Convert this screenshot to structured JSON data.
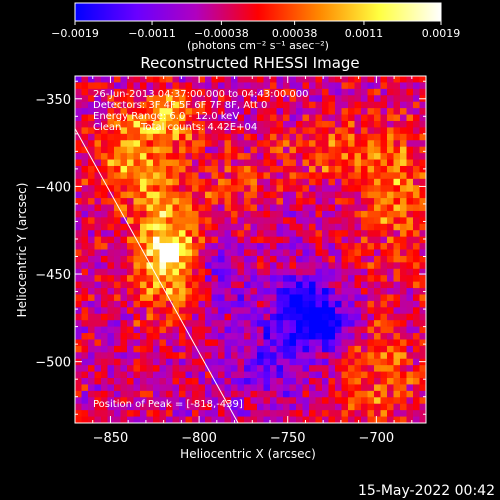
{
  "chart_data": {
    "type": "heatmap",
    "title": "Reconstructed RHESSI Image",
    "xlabel": "Heliocentric X (arcsec)",
    "ylabel": "Heliocentric Y (arcsec)",
    "xlim": [
      -870,
      -672
    ],
    "ylim": [
      -535,
      -337
    ],
    "x_ticks": [
      -850,
      -800,
      -750,
      -700
    ],
    "x_tick_labels": [
      "−850",
      "−800",
      "−750",
      "−700"
    ],
    "y_ticks": [
      -350,
      -400,
      -450,
      -500
    ],
    "y_tick_labels": [
      "−350",
      "−400",
      "−450",
      "−500"
    ],
    "colorbar": {
      "min": -0.0019,
      "max": 0.0019,
      "ticks": [
        -0.0019,
        -0.0011,
        -0.00038,
        0.00038,
        0.0011,
        0.0019
      ],
      "tick_labels": [
        "−0.0019",
        "−0.0011",
        "−0.00038",
        "0.00038",
        "0.0011",
        "0.0019"
      ],
      "units_label": "(photons cm⁻² s⁻¹ asec⁻²)",
      "colors": [
        "#0000ff",
        "#6a00ff",
        "#b000c0",
        "#ff0000",
        "#ff8a00",
        "#ffff40",
        "#ffffff"
      ]
    },
    "annotations": [
      "26-Jun-2013 04:37:00.000 to 04:43:00.000",
      "Detectors: 3F 4F 5F 6F 7F 8F, Att 0",
      "Energy Range: 6.0 - 12.0 keV",
      "Clean",
      "Total counts: 4.42E+04"
    ],
    "peak_label": "Position of Peak = [-818,-439]",
    "peak": {
      "x": -818,
      "y": -439,
      "value": 0.0019
    },
    "limb_line": [
      [
        -870,
        -367
      ],
      [
        -778,
        -535
      ]
    ],
    "hot_sources": [
      {
        "x": -818,
        "y": -439,
        "sigma_x": 13,
        "sigma_y": 22,
        "value": 0.0019
      },
      {
        "x": -836,
        "y": -385,
        "sigma_x": 16,
        "sigma_y": 18,
        "value": 0.0012
      },
      {
        "x": -815,
        "y": -360,
        "sigma_x": 14,
        "sigma_y": 10,
        "value": 0.001
      },
      {
        "x": -690,
        "y": -400,
        "sigma_x": 14,
        "sigma_y": 30,
        "value": 0.0009
      },
      {
        "x": -700,
        "y": -505,
        "sigma_x": 18,
        "sigma_y": 22,
        "value": 0.0008
      },
      {
        "x": -730,
        "y": -380,
        "sigma_x": 18,
        "sigma_y": 12,
        "value": 0.0007
      },
      {
        "x": -780,
        "y": -400,
        "sigma_x": 14,
        "sigma_y": 12,
        "value": 0.0006
      }
    ],
    "cold_sources": [
      {
        "x": -742,
        "y": -470,
        "sigma_x": 12,
        "sigma_y": 14,
        "value": -0.0016
      },
      {
        "x": -725,
        "y": -480,
        "sigma_x": 10,
        "sigma_y": 12,
        "value": -0.0012
      },
      {
        "x": -760,
        "y": -500,
        "sigma_x": 18,
        "sigma_y": 14,
        "value": -0.0008
      },
      {
        "x": -790,
        "y": -455,
        "sigma_x": 15,
        "sigma_y": 14,
        "value": -0.0006
      }
    ]
  },
  "footer": {
    "timestamp": "15-May-2022 00:42"
  }
}
